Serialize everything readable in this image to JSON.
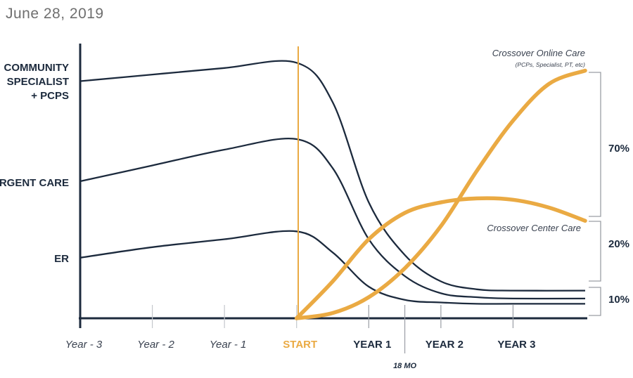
{
  "header": {
    "date": "June 28, 2019"
  },
  "chart_data": {
    "type": "line",
    "x_ticks": [
      "Year - 3",
      "Year - 2",
      "Year - 1",
      "START",
      "YEAR 1",
      "YEAR 2",
      "YEAR 3"
    ],
    "x_marker": "18 MO",
    "xlim": [
      -3,
      4
    ],
    "ylim": [
      0,
      100
    ],
    "series_labels": [
      "COMMUNITY SPECIALIST + PCPS",
      "URGENT CARE",
      "ER"
    ],
    "legacy_series": [
      {
        "x": [
          -3,
          -2,
          -1,
          0,
          0.5,
          1,
          1.5,
          2,
          2.5,
          3,
          4
        ],
        "y": [
          90,
          92.5,
          95,
          97,
          82,
          44,
          24,
          14,
          11,
          10.5,
          10.5
        ]
      },
      {
        "x": [
          -3,
          -2,
          -1,
          0,
          0.5,
          1,
          1.5,
          2,
          2.5,
          3,
          4
        ],
        "y": [
          52,
          58,
          64,
          68,
          57,
          30,
          16,
          9.5,
          8,
          7.5,
          7.5
        ]
      },
      {
        "x": [
          -3,
          -2,
          -1,
          0,
          0.5,
          1,
          1.5,
          2,
          2.5,
          3,
          4
        ],
        "y": [
          23,
          27,
          30,
          33,
          25,
          12,
          7,
          6,
          5.5,
          5.5,
          5.5
        ]
      }
    ],
    "crossover_series": [
      {
        "label": "Crossover Online Care",
        "sublabel": "(PCPs, Specialist, PT, etc)",
        "x": [
          0,
          0.5,
          1,
          1.5,
          2,
          2.5,
          3,
          3.5,
          4
        ],
        "y": [
          0,
          2,
          8,
          19,
          35,
          56,
          75,
          89,
          94
        ]
      },
      {
        "label": "Crossover Center Care",
        "x": [
          0,
          0.5,
          1,
          1.5,
          2,
          2.5,
          3,
          3.5,
          4
        ],
        "y": [
          0,
          14,
          30,
          40,
          44,
          45.5,
          45,
          42,
          37
        ]
      }
    ],
    "shares": [
      {
        "label": "70%"
      },
      {
        "label": "20%"
      },
      {
        "label": "10%"
      }
    ],
    "colors": {
      "legacy": "#1c2a3d",
      "crossover": "#eaaa43",
      "axis": "#1c2a3d",
      "grid": "#b0b4ba"
    }
  }
}
